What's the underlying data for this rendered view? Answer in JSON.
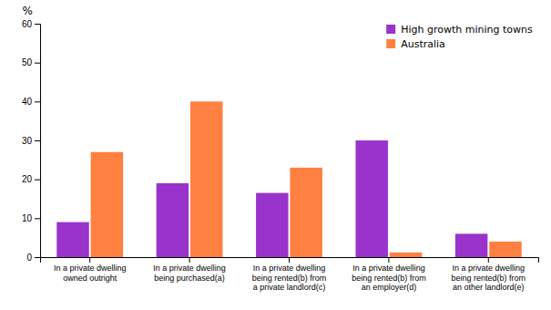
{
  "chart_data": {
    "type": "bar",
    "ylabel": "%",
    "categories": [
      "In a private dwelling\nowned outright",
      "In a private dwelling\nbeing purchased(a)",
      "In a private dwelling\nbeing rented(b) from\na private landlord(c)",
      "In a private dwelling\nbeing rented(b) from\nan employer(d)",
      "In a private dwelling\nbeing rented(b) from\nan other landlord(e)"
    ],
    "series": [
      {
        "name": "High growth mining towns",
        "color": "#9933CC",
        "values": [
          9,
          19,
          16.5,
          30,
          6
        ]
      },
      {
        "name": "Australia",
        "color": "#FF8040",
        "values": [
          27,
          40,
          23,
          1.2,
          4
        ]
      }
    ],
    "ylim": [
      0,
      60
    ],
    "yticks": [
      0,
      10,
      20,
      30,
      40,
      50,
      60
    ],
    "grid": false,
    "legend": "upper right"
  }
}
